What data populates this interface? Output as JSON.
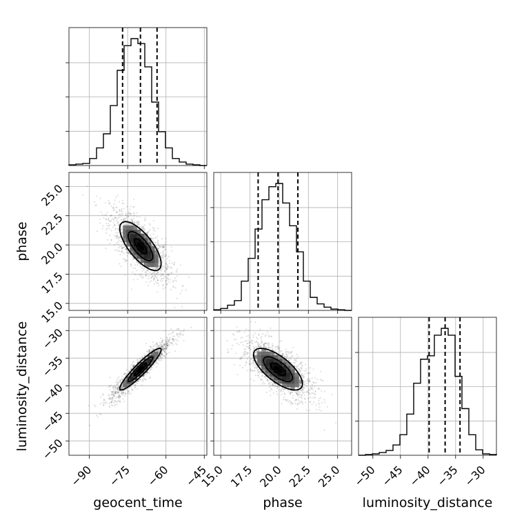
{
  "chart_data": {
    "type": "corner",
    "parameters": [
      "geocent_time",
      "phase",
      "luminosity_distance"
    ],
    "axis_labels": {
      "x": [
        "geocent_time",
        "phase",
        "luminosity_distance"
      ],
      "y": [
        "",
        "phase",
        "luminosity_distance"
      ]
    },
    "ranges": {
      "geocent_time": [
        -98,
        -44
      ],
      "phase": [
        14.4,
        26.2
      ],
      "luminosity_distance": [
        -52.6,
        -27.6
      ]
    },
    "ticks": {
      "geocent_time": [
        "−90",
        "−75",
        "−60",
        "−45"
      ],
      "phase": [
        "15.0",
        "17.5",
        "20.0",
        "22.5",
        "25.0"
      ],
      "luminosity_distance": [
        "−50",
        "−45",
        "−40",
        "−35",
        "−30"
      ]
    },
    "tick_values": {
      "geocent_time": [
        -90,
        -75,
        -60,
        -45
      ],
      "phase": [
        15.0,
        17.5,
        20.0,
        22.5,
        25.0
      ],
      "luminosity_distance": [
        -50,
        -45,
        -40,
        -35,
        -30
      ]
    },
    "quantiles": {
      "geocent_time": [
        -77.0,
        -70.0,
        -63.5
      ],
      "phase": [
        18.2,
        19.9,
        21.6
      ],
      "luminosity_distance": [
        -39.8,
        -36.9,
        -34.2
      ]
    },
    "histograms": {
      "geocent_time": {
        "edges": [
          -98,
          -95.3,
          -92.6,
          -89.9,
          -87.2,
          -84.5,
          -81.8,
          -79.1,
          -76.4,
          -73.7,
          -71,
          -68.3,
          -65.6,
          -62.9,
          -60.2,
          -57.5,
          -54.8,
          -52.1,
          -49.4,
          -46.7,
          -44
        ],
        "counts": [
          1,
          2,
          3,
          10,
          25,
          45,
          85,
          135,
          170,
          180,
          173,
          140,
          90,
          48,
          25,
          10,
          5,
          2,
          1,
          0
        ]
      },
      "phase": {
        "edges": [
          14.4,
          14.99,
          15.58,
          16.17,
          16.76,
          17.35,
          17.94,
          18.53,
          19.12,
          19.71,
          20.3,
          20.89,
          21.48,
          22.07,
          22.66,
          23.25,
          23.84,
          24.43,
          25.02,
          25.61,
          26.2
        ],
        "counts": [
          1,
          3,
          8,
          15,
          45,
          80,
          125,
          170,
          190,
          195,
          165,
          130,
          90,
          45,
          20,
          10,
          5,
          2,
          1,
          0
        ]
      },
      "luminosity_distance": {
        "edges": [
          -52.6,
          -51.35,
          -50.1,
          -48.85,
          -47.6,
          -46.35,
          -45.1,
          -43.85,
          -42.6,
          -41.35,
          -40.1,
          -38.85,
          -37.6,
          -36.35,
          -35.1,
          -33.85,
          -32.6,
          -31.35,
          -30.1,
          -28.85,
          -27.6
        ],
        "counts": [
          0,
          1,
          2,
          4,
          7,
          15,
          30,
          60,
          105,
          140,
          145,
          175,
          185,
          175,
          115,
          68,
          30,
          8,
          2,
          1
        ]
      }
    },
    "pairs": [
      {
        "x": "geocent_time",
        "y": "phase",
        "mean": [
          -70.0,
          19.9
        ],
        "sd": [
          6.0,
          1.55
        ],
        "corr": -0.72
      },
      {
        "x": "geocent_time",
        "y": "luminosity_distance",
        "mean": [
          -70.0,
          -37.0
        ],
        "sd": [
          6.0,
          2.8
        ],
        "corr": 0.93
      },
      {
        "x": "phase",
        "y": "luminosity_distance",
        "mean": [
          19.9,
          -37.0
        ],
        "sd": [
          1.55,
          2.8
        ],
        "corr": -0.7
      }
    ],
    "contour_levels": [
      0.12,
      0.4,
      0.8,
      1.35
    ],
    "grid": true
  }
}
